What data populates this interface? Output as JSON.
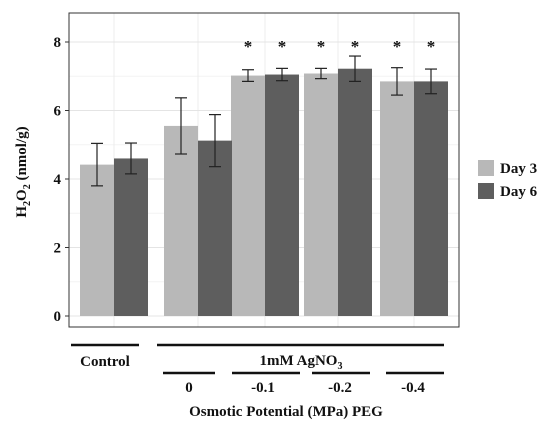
{
  "chart_data": {
    "type": "bar",
    "ylabel_main": "H",
    "ylabel_sub": "2",
    "ylabel_mid": "O",
    "ylabel_sub2": "2",
    "ylabel_unit": " (nmol/g)",
    "ylim": [
      0,
      9
    ],
    "yticks": [
      "0",
      "2",
      "4",
      "6",
      "8"
    ],
    "ytick_values": [
      0,
      2,
      4,
      6,
      8
    ],
    "grid": true,
    "legend_position": "right",
    "categories": [
      "Control",
      "0",
      "-0.1",
      "-0.2",
      "-0.4"
    ],
    "series": [
      {
        "name": "Day 3",
        "color": "#b8b8b8",
        "values": [
          4.42,
          5.55,
          7.02,
          7.08,
          6.85
        ],
        "errors": [
          0.62,
          0.82,
          0.17,
          0.15,
          0.4
        ],
        "significant": [
          false,
          false,
          true,
          true,
          true
        ]
      },
      {
        "name": "Day 6",
        "color": "#5e5e5e",
        "values": [
          4.6,
          5.12,
          7.05,
          7.22,
          6.85
        ],
        "errors": [
          0.45,
          0.76,
          0.18,
          0.37,
          0.36
        ],
        "significant": [
          false,
          false,
          true,
          true,
          true
        ]
      }
    ],
    "star_symbol": "*",
    "group_labels": {
      "control": "Control",
      "agno3_prefix": "1mM AgNO",
      "agno3_sub": "3",
      "xlabel": "Osmotic Potential (MPa) PEG"
    }
  }
}
